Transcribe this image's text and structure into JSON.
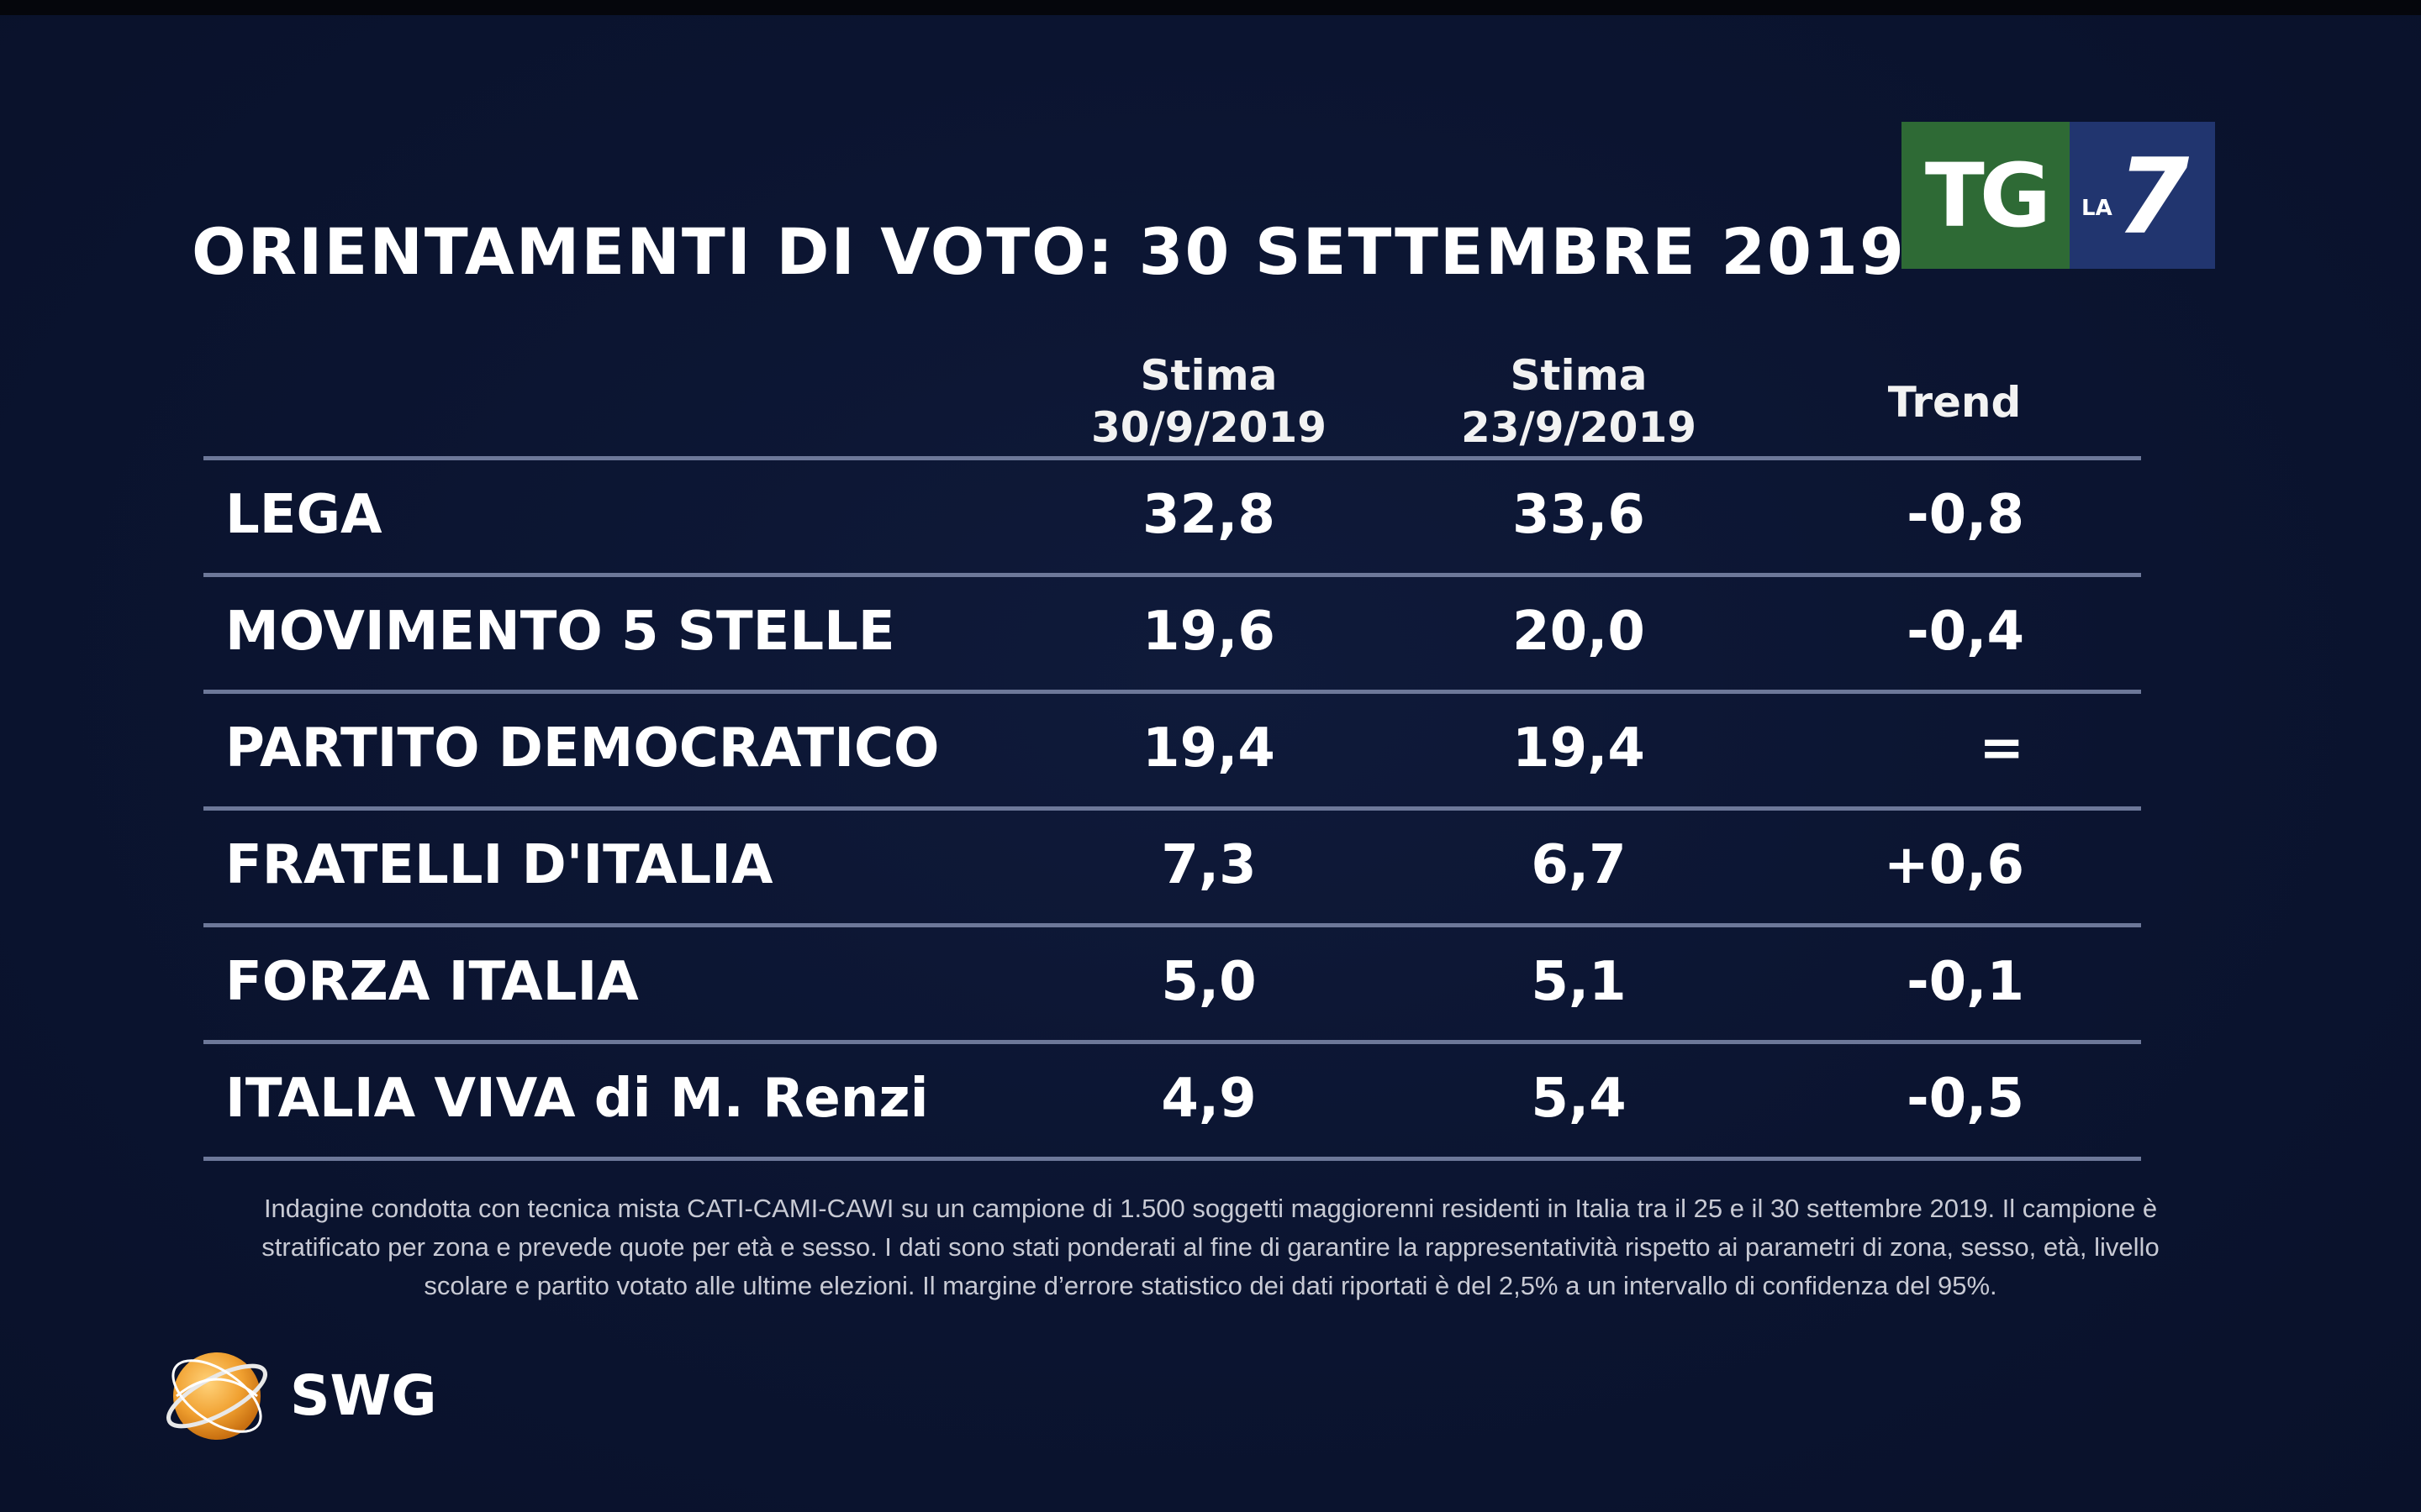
{
  "title": "ORIENTAMENTI DI VOTO: 30 SETTEMBRE 2019",
  "logo": {
    "tg": "TG",
    "la": "LA",
    "seven": "7"
  },
  "chart_data": {
    "type": "table",
    "columns": [
      {
        "line1": "Stima",
        "line2": "30/9/2019"
      },
      {
        "line1": "Stima",
        "line2": "23/9/2019"
      },
      {
        "line1": "Trend",
        "line2": ""
      }
    ],
    "rows": [
      {
        "party": "LEGA",
        "stima_30_9": "32,8",
        "stima_23_9": "33,6",
        "trend": "-0,8"
      },
      {
        "party": "MOVIMENTO 5 STELLE",
        "stima_30_9": "19,6",
        "stima_23_9": "20,0",
        "trend": "-0,4"
      },
      {
        "party": "PARTITO DEMOCRATICO",
        "stima_30_9": "19,4",
        "stima_23_9": "19,4",
        "trend": "="
      },
      {
        "party": "FRATELLI D'ITALIA",
        "stima_30_9": "7,3",
        "stima_23_9": "6,7",
        "trend": "+0,6"
      },
      {
        "party": "FORZA ITALIA",
        "stima_30_9": "5,0",
        "stima_23_9": "5,1",
        "trend": "-0,1"
      },
      {
        "party": "ITALIA VIVA di M. Renzi",
        "stima_30_9": "4,9",
        "stima_23_9": "5,4",
        "trend": "-0,5"
      }
    ]
  },
  "footnote": {
    "line1": "Indagine condotta con tecnica mista CATI-CAMI-CAWI su un campione di 1.500 soggetti maggiorenni residenti in Italia tra il 25 e il 30 settembre 2019. Il campione è",
    "line2": "stratificato per zona e prevede quote per età e sesso. I dati sono stati ponderati al fine di garantire la rappresentatività rispetto ai parametri di zona, sesso, età, livello",
    "line3": "scolare e partito votato alle ultime elezioni. Il margine d’errore statistico dei dati riportati è del 2,5% a un intervallo di confidenza del 95%."
  },
  "source_logo": "SWG",
  "colors": {
    "background": "#0b1430",
    "rule": "#6d7899",
    "tg_green": "#2e6a35",
    "la7_blue": "#21356f",
    "swg_orange": "#f0a030"
  }
}
